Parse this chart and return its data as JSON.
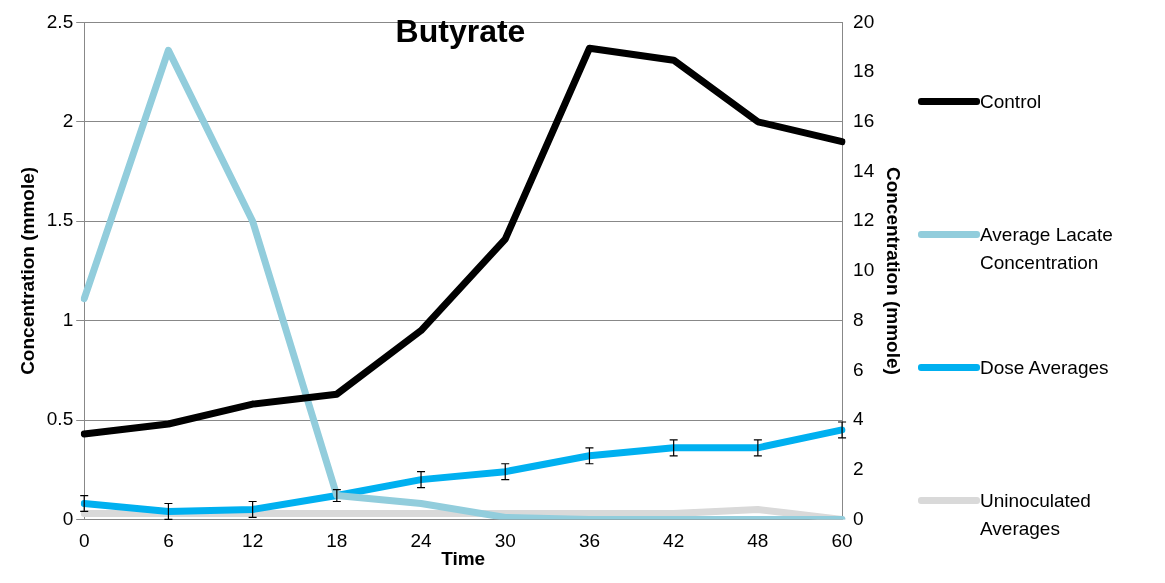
{
  "chart_data": {
    "type": "line",
    "title": "Butyrate",
    "xlabel": "Time",
    "ylabel": "Concentration (mmole)",
    "y2label": "Concentration (mmole)",
    "categories": [
      "0",
      "6",
      "12",
      "18",
      "24",
      "30",
      "36",
      "42",
      "48",
      "60"
    ],
    "series": [
      {
        "name": "Control",
        "color": "#000000",
        "values": [
          0.43,
          0.48,
          0.58,
          0.63,
          0.95,
          1.41,
          2.37,
          2.31,
          2.0,
          1.9
        ]
      },
      {
        "name": "Average Lacate Concentration",
        "color": "#92cddc",
        "values": [
          1.11,
          2.36,
          1.5,
          0.12,
          0.08,
          0.01,
          0,
          0,
          0,
          0
        ]
      },
      {
        "name": "Dose Averages",
        "color": "#00b0f0",
        "values": [
          0.08,
          0.04,
          0.05,
          0.12,
          0.2,
          0.24,
          0.32,
          0.36,
          0.36,
          0.45
        ],
        "errors": [
          0.04,
          0.04,
          0.04,
          0.03,
          0.04,
          0.04,
          0.04,
          0.04,
          0.04,
          0.04
        ]
      },
      {
        "name": "Uninoculated Averages",
        "color": "#d9d9d9",
        "values": [
          0.03,
          0.03,
          0.03,
          0.03,
          0.03,
          0.03,
          0.03,
          0.03,
          0.05,
          0.0
        ]
      }
    ],
    "ylim": [
      0,
      2.5
    ],
    "yticks": [
      0,
      0.5,
      1,
      1.5,
      2,
      2.5
    ],
    "y2lim": [
      0,
      20
    ],
    "y2ticks": [
      0,
      2,
      4,
      6,
      8,
      10,
      12,
      14,
      16,
      18,
      20
    ],
    "grid": "y",
    "legend": "right",
    "marker": "none",
    "line_style": "solid"
  }
}
